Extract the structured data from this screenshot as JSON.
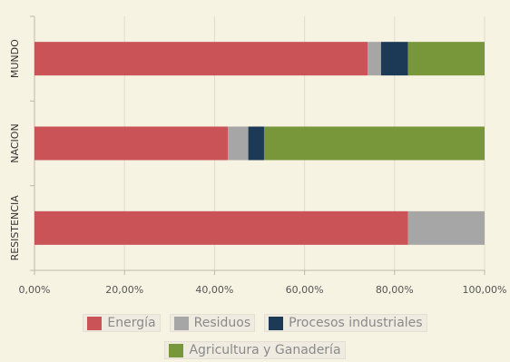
{
  "chart_data": {
    "type": "bar",
    "orientation": "horizontal",
    "stacked": true,
    "normalized": true,
    "categories": [
      "MUNDO",
      "NACION",
      "RESISTENCIA"
    ],
    "series": [
      {
        "name": "Energía",
        "color": "#c95357",
        "values": [
          74,
          43,
          83
        ]
      },
      {
        "name": "Residuos",
        "color": "#a6a6a6",
        "values": [
          3,
          4.5,
          17
        ]
      },
      {
        "name": "Procesos industriales",
        "color": "#1c3a55",
        "values": [
          6,
          3.5,
          0
        ]
      },
      {
        "name": "Agricultura y Ganadería",
        "color": "#77973a",
        "values": [
          17,
          49,
          0
        ]
      }
    ],
    "x_ticks": [
      "0,00%",
      "20,00%",
      "40,00%",
      "60,00%",
      "80,00%",
      "100,00%"
    ],
    "xlim": [
      0,
      100
    ],
    "grid": true,
    "legend_position": "bottom",
    "title": "",
    "xlabel": "",
    "ylabel": ""
  }
}
